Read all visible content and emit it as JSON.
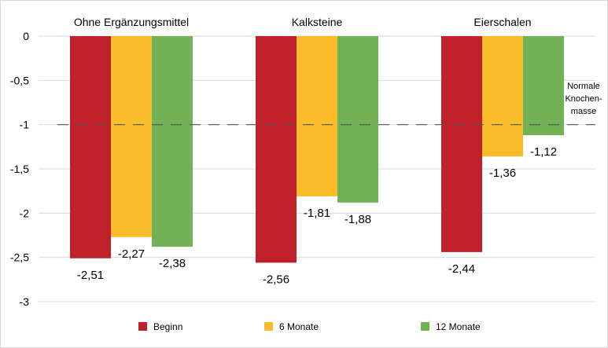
{
  "chart_data": {
    "type": "bar",
    "categories": [
      "Ohne Ergänzungsmittel",
      "Kalksteine",
      "Eierschalen"
    ],
    "series": [
      {
        "name": "Beginn",
        "values": [
          -2.51,
          -2.56,
          -2.44
        ],
        "labels": [
          "-2,51",
          "-2,56",
          "-2,44"
        ],
        "color": "#c0202a"
      },
      {
        "name": "6 Monate",
        "values": [
          -2.27,
          -1.81,
          -1.36
        ],
        "labels": [
          "-2,27",
          "-1,81",
          "-1,36"
        ],
        "color": "#fbbc2b"
      },
      {
        "name": "12 Monate",
        "values": [
          -2.38,
          -1.88,
          -1.12
        ],
        "labels": [
          "-2,38",
          "-1,88",
          "-1,12"
        ],
        "color": "#70b255"
      }
    ],
    "yticks": [
      0,
      -0.5,
      -1,
      -1.5,
      -2,
      -2.5,
      -3
    ],
    "ytick_labels": [
      "0",
      "-0,5",
      "-1",
      "-1,5",
      "-2",
      "-2,5",
      "-3"
    ],
    "ylim": [
      -3,
      0
    ],
    "reference_line": {
      "value": -1,
      "label_lines": [
        "Normale",
        "Knochen-",
        "masse"
      ],
      "style": "dashed",
      "color": "#555555"
    },
    "gridlines": true,
    "grid_color": "#d9d9d9",
    "legend_position": "bottom"
  }
}
